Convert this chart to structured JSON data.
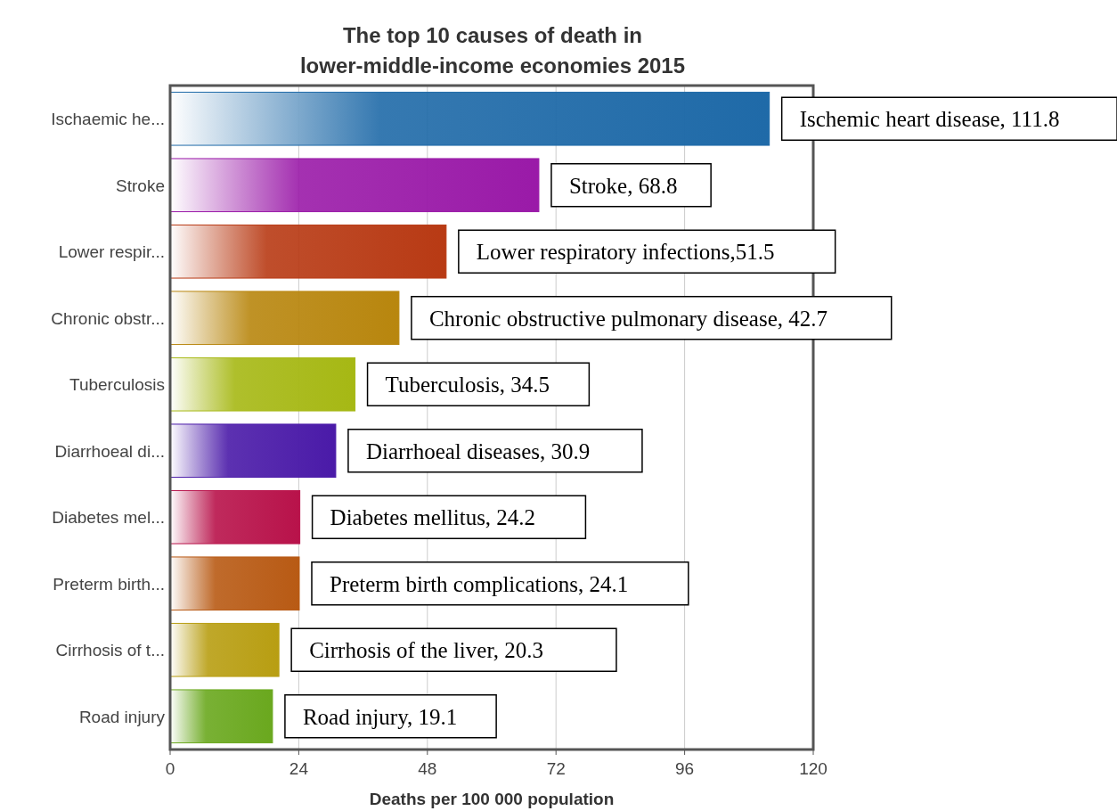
{
  "chart_data": {
    "type": "bar",
    "orientation": "horizontal",
    "title": "The top 10 causes of death in\nlower-middle-income economies 2015",
    "xlabel": "Deaths per 100 000 population",
    "categories": [
      "Ischaemic he...",
      "Stroke",
      "Lower respir...",
      "Chronic obstr...",
      "Tuberculosis",
      "Diarrhoeal di...",
      "Diabetes mel...",
      "Preterm birth...",
      "Cirrhosis of t...",
      "Road injury"
    ],
    "values": [
      111.8,
      68.8,
      51.5,
      42.7,
      34.5,
      30.9,
      24.2,
      24.1,
      20.3,
      19.1
    ],
    "colors": [
      "#1f6aa8",
      "#9a1aa8",
      "#b83a14",
      "#b8860e",
      "#a6b814",
      "#4a1aa8",
      "#b8124a",
      "#b85a14",
      "#b89e12",
      "#6aa81e"
    ],
    "xlim": [
      0,
      120
    ],
    "xticks": [
      0,
      24,
      48,
      72,
      96,
      120
    ],
    "grid": "x",
    "annotations": [
      {
        "text": "Ischemic heart disease, 111.8",
        "x": 111.8,
        "y": "Ischaemic he..."
      },
      {
        "text": "Stroke, 68.8",
        "x": 68.8,
        "y": "Stroke"
      },
      {
        "text": "Lower respiratory infections,51.5",
        "x": 51.5,
        "y": "Lower respir..."
      },
      {
        "text": "Chronic obstructive pulmonary disease, 42.7",
        "x": 42.7,
        "y": "Chronic obstr..."
      },
      {
        "text": "Tuberculosis, 34.5",
        "x": 34.5,
        "y": "Tuberculosis"
      },
      {
        "text": "Diarrhoeal diseases, 30.9",
        "x": 30.9,
        "y": "Diarrhoeal di..."
      },
      {
        "text": "Diabetes mellitus, 24.2",
        "x": 24.2,
        "y": "Diabetes mel..."
      },
      {
        "text": "Preterm birth complications, 24.1",
        "x": 24.1,
        "y": "Preterm birth..."
      },
      {
        "text": "Cirrhosis of the liver, 20.3",
        "x": 20.3,
        "y": "Cirrhosis of t..."
      },
      {
        "text": "Road injury, 19.1",
        "x": 19.1,
        "y": "Road injury"
      }
    ]
  }
}
